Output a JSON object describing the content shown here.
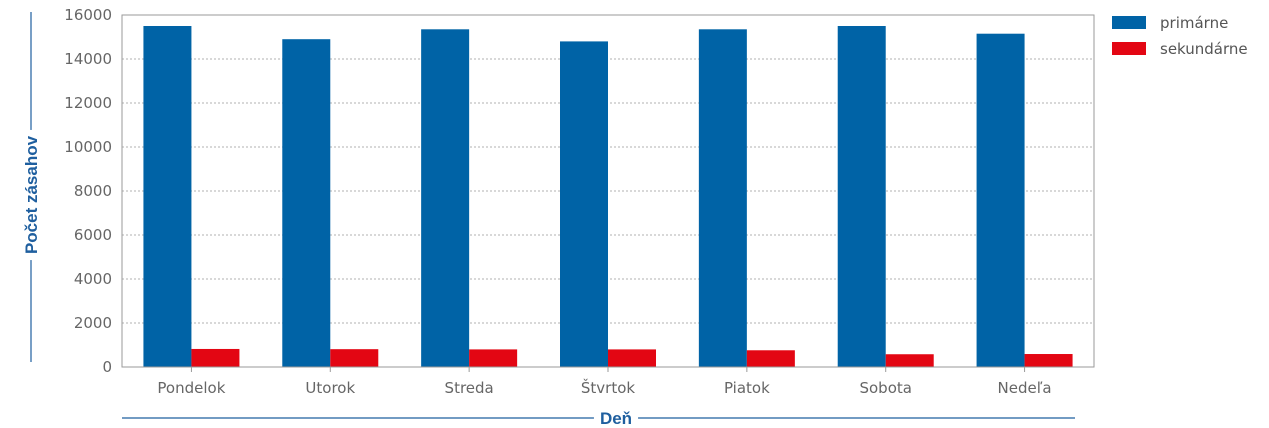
{
  "chart_data": {
    "type": "bar",
    "categories": [
      "Pondelok",
      "Utorok",
      "Streda",
      "Štvrtok",
      "Piatok",
      "Sobota",
      "Nedeľa"
    ],
    "series": [
      {
        "name": "primárne",
        "color": "#0063a6",
        "values": [
          15500,
          14900,
          15350,
          14800,
          15350,
          15500,
          15150
        ]
      },
      {
        "name": "sekundárne",
        "color": "#e30613",
        "values": [
          820,
          810,
          800,
          800,
          760,
          580,
          590
        ]
      }
    ],
    "xlabel": "Deň",
    "ylabel": "Počet zásahov",
    "ylim": [
      0,
      16000
    ],
    "yticks": [
      0,
      2000,
      4000,
      6000,
      8000,
      10000,
      12000,
      14000,
      16000
    ],
    "grid": true,
    "legend_position": "top-right",
    "axis_title_color": "#1f5f9f",
    "grid_color": "#999999",
    "tick_color": "#666666"
  }
}
